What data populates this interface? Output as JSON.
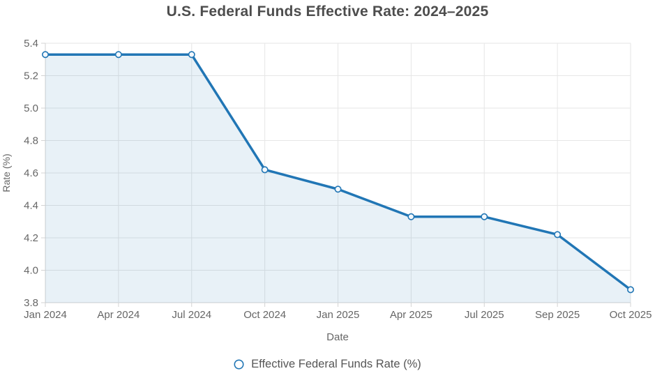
{
  "chart": {
    "title": "U.S. Federal Funds Effective Rate: 2024–2025",
    "legend": {
      "label": "Effective Federal Funds Rate (%)",
      "marker": "open-circle"
    }
  },
  "chart_data": {
    "type": "line",
    "title": "U.S. Federal Funds Effective Rate: 2024–2025",
    "categories": [
      "Jan 2024",
      "Apr 2024",
      "Jul 2024",
      "Oct 2024",
      "Jan 2025",
      "Apr 2025",
      "Jul 2025",
      "Sep 2025",
      "Oct 2025"
    ],
    "series": [
      {
        "name": "Effective Federal Funds Rate (%)",
        "values": [
          5.33,
          5.33,
          5.33,
          4.62,
          4.5,
          4.33,
          4.33,
          4.22,
          3.88
        ]
      }
    ],
    "xlabel": "Date",
    "ylabel": "Rate (%)",
    "ylim": [
      3.8,
      5.4
    ],
    "ytick_step": 0.2,
    "ytick_labels": [
      "3.8",
      "4.0",
      "4.2",
      "4.4",
      "4.6",
      "4.8",
      "5.0",
      "5.2",
      "5.4"
    ],
    "grid": true,
    "area_fill": true,
    "markers": "open-circle",
    "legend_position": "bottom",
    "colors": {
      "line": "#2176b5",
      "area_fill": "#2176b5",
      "area_fill_opacity": "0.10",
      "marker_fill": "#f3f8fc",
      "grid": "#e6e6e6",
      "axis": "#d3d3d3",
      "tick_text": "#666666",
      "axis_title_text": "#666666",
      "title_text": "#4d4d4d",
      "legend_text": "#565656",
      "background": "#ffffff"
    }
  }
}
